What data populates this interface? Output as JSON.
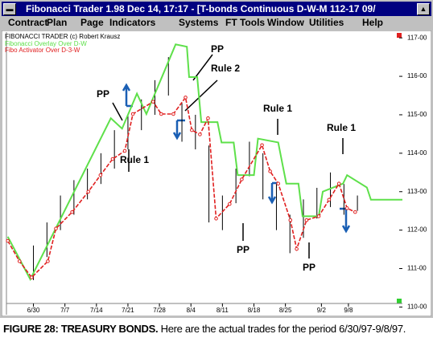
{
  "window": {
    "title": "Fibonacci Trader 1.98 Dec 14, 17:17 - [T-bonds Continuous D-W-M 112-17 09/",
    "menu": [
      "Contract",
      "Plan",
      "Page",
      "Indicators",
      "Systems",
      "FT Tools",
      "Window",
      "Utilities",
      "Help"
    ]
  },
  "chart_data": {
    "type": "line",
    "header": "FIBONACCI TRADER (c) Robert Krausz",
    "annotations": [
      "PP",
      "PP",
      "Rule 2",
      "Rule 1",
      "Rule 1",
      "Rule 1",
      "PP",
      "PP"
    ],
    "xlim": [
      -6,
      82
    ],
    "ylim": [
      109.8,
      117.15
    ],
    "xticks": [
      {
        "value": 0,
        "label": "6/30"
      },
      {
        "value": 7,
        "label": "7/7"
      },
      {
        "value": 14,
        "label": "7/14"
      },
      {
        "value": 21,
        "label": "7/21"
      },
      {
        "value": 28,
        "label": "7/28"
      },
      {
        "value": 35,
        "label": "8/4"
      },
      {
        "value": 42,
        "label": "8/11"
      },
      {
        "value": 49,
        "label": "8/18"
      },
      {
        "value": 56,
        "label": "8/25"
      },
      {
        "value": 64,
        "label": "9/2"
      },
      {
        "value": 70,
        "label": "9/8"
      }
    ],
    "yticks": [
      {
        "value": 110,
        "label": "110-00"
      },
      {
        "value": 111,
        "label": "111-00"
      },
      {
        "value": 112,
        "label": "112-00"
      },
      {
        "value": 113,
        "label": "113-00"
      },
      {
        "value": 114,
        "label": "114-00"
      },
      {
        "value": 115,
        "label": "115-00"
      },
      {
        "value": 116,
        "label": "116-00"
      },
      {
        "value": 117,
        "label": "117-00"
      }
    ],
    "bars": {
      "color": "#000000",
      "x": [
        0,
        3,
        6,
        9,
        12,
        15,
        18,
        21,
        24,
        27,
        30,
        33,
        36,
        39,
        42,
        45,
        48,
        51,
        54,
        57,
        60,
        63,
        66,
        69,
        72
      ],
      "high": [
        111.6,
        112.2,
        112.9,
        113.3,
        113.6,
        114.0,
        114.6,
        115.0,
        115.4,
        115.9,
        116.5,
        115.3,
        115.0,
        114.2,
        112.9,
        113.6,
        114.3,
        114.0,
        113.2,
        112.4,
        112.8,
        113.1,
        113.5,
        113.2,
        112.9
      ],
      "low": [
        110.7,
        111.3,
        112.0,
        112.4,
        112.8,
        113.2,
        113.6,
        114.1,
        114.6,
        115.0,
        115.5,
        114.3,
        114.1,
        112.2,
        112.0,
        112.7,
        113.4,
        112.8,
        112.0,
        111.4,
        111.8,
        112.3,
        112.6,
        112.4,
        112.5
      ]
    },
    "series": [
      {
        "name": "Fibonacci Overlay Over D-W",
        "color": "#5ee04a",
        "x": [
          -5.7,
          -0.7,
          17.2,
          19.7,
          23.0,
          25.1,
          31.6,
          34.1,
          34.6,
          36.4,
          37.3,
          40.9,
          41.8,
          44.5,
          45.4,
          49.0,
          49.9,
          54.4,
          55.3,
          56.2,
          58.9,
          59.8,
          63.4,
          64.3,
          68.8,
          69.7,
          74.1,
          75.0,
          82
        ],
        "values": [
          111.83,
          110.72,
          114.91,
          114.64,
          115.55,
          115.02,
          116.83,
          116.77,
          115.98,
          115.98,
          114.81,
          114.81,
          114.28,
          114.28,
          113.43,
          113.43,
          114.38,
          114.28,
          113.74,
          113.21,
          113.21,
          112.36,
          112.36,
          113.0,
          113.21,
          113.43,
          113.11,
          112.79,
          112.79
        ]
      },
      {
        "name": "Fibo Activator Over D-3-W",
        "color": "#e02020",
        "x": [
          -5.7,
          -3.1,
          -0.4,
          3.2,
          5.0,
          8.6,
          12.2,
          14.9,
          17.6,
          20.3,
          22.1,
          26.6,
          28.4,
          31.1,
          33.8,
          35.2,
          37.0,
          38.8,
          40.6,
          43.6,
          46.3,
          50.8,
          52.6,
          54.4,
          57.1,
          58.5,
          60.7,
          63.4,
          65.7,
          67.9,
          69.7,
          71.5
        ],
        "values": [
          111.72,
          111.19,
          110.77,
          111.19,
          112.04,
          112.47,
          113.0,
          113.43,
          113.85,
          114.06,
          115.02,
          115.34,
          115.02,
          115.02,
          115.45,
          114.6,
          114.49,
          114.91,
          112.3,
          112.68,
          113.32,
          114.21,
          113.53,
          113.21,
          112.26,
          111.51,
          112.26,
          112.36,
          112.79,
          113.21,
          112.57,
          112.47
        ]
      }
    ]
  },
  "caption": {
    "label": "FIGURE 28: TREASURY BONDS.",
    "text": " Here are the actual trades for the period 6/30/97-9/8/97."
  }
}
